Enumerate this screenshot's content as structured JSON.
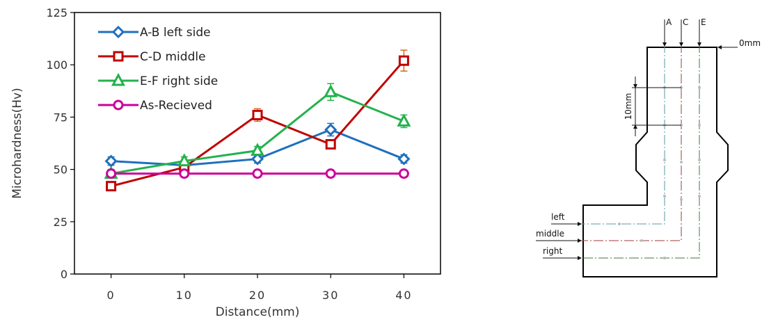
{
  "chart_data": [
    {
      "type": "line",
      "title": "",
      "xlabel": "Distance(mm)",
      "ylabel": "Microhardness(Hv)",
      "x": [
        0,
        10,
        20,
        30,
        40
      ],
      "xticks": [
        "0",
        "10",
        "20",
        "30",
        "40"
      ],
      "xlim": [
        -5,
        45
      ],
      "yticks": [
        "0",
        "25",
        "50",
        "75",
        "100",
        "125"
      ],
      "ylim": [
        0,
        125
      ],
      "grid": false,
      "legend": "top-left",
      "series": [
        {
          "name": "A-B left side",
          "marker": "diamond",
          "color": "#1f6fbf",
          "err_color": "#1f6fbf",
          "values": [
            54,
            52,
            55,
            69,
            55
          ],
          "errors": [
            2,
            2,
            2,
            3,
            2
          ]
        },
        {
          "name": "C-D middle",
          "marker": "square",
          "color": "#c00000",
          "err_color": "#d46a1f",
          "values": [
            42,
            51,
            76,
            62,
            102
          ],
          "errors": [
            2,
            2,
            3,
            2,
            5
          ]
        },
        {
          "name": "E-F right side",
          "marker": "triangle",
          "color": "#22b24c",
          "err_color": "#22b24c",
          "values": [
            48,
            54,
            59,
            87,
            73
          ],
          "errors": [
            2,
            2,
            2,
            4,
            3
          ]
        },
        {
          "name": "As-Recieved",
          "marker": "circle",
          "color": "#cc0099",
          "err_color": "#cc0099",
          "values": [
            48,
            48,
            48,
            48,
            48
          ],
          "errors": [
            0,
            0,
            0,
            0,
            0
          ]
        }
      ]
    }
  ],
  "diagram": {
    "line_labels": [
      "A",
      "C",
      "E"
    ],
    "zero_label": "0mm",
    "spacing_label": "10mm",
    "side_labels": [
      "left",
      "middle",
      "right"
    ]
  }
}
